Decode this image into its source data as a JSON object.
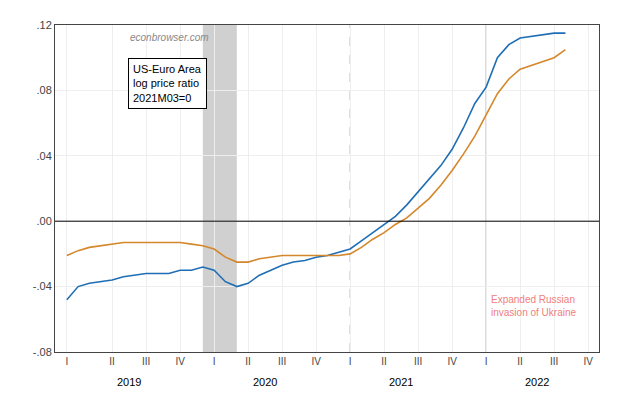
{
  "chart_data": {
    "type": "line",
    "annotations": [
      "econbrowser.com",
      "US-Euro Area\nlog price ratio\n2021M03=0"
    ],
    "x": [
      2018.917,
      2019.0,
      2019.083,
      2019.167,
      2019.25,
      2019.333,
      2019.417,
      2019.5,
      2019.583,
      2019.667,
      2019.75,
      2019.833,
      2019.917,
      2020.0,
      2020.083,
      2020.167,
      2020.25,
      2020.333,
      2020.417,
      2020.5,
      2020.583,
      2020.667,
      2020.75,
      2020.833,
      2020.917,
      2021.0,
      2021.083,
      2021.167,
      2021.25,
      2021.333,
      2021.417,
      2021.5,
      2021.583,
      2021.667,
      2021.75,
      2021.833,
      2021.917,
      2022.0,
      2022.083,
      2022.167,
      2022.25,
      2022.5,
      2022.583
    ],
    "series": [
      {
        "color": "#1f6eb5",
        "values": [
          -0.048,
          -0.04,
          -0.038,
          -0.037,
          -0.036,
          -0.034,
          -0.033,
          -0.032,
          -0.032,
          -0.032,
          -0.03,
          -0.03,
          -0.028,
          -0.03,
          -0.037,
          -0.04,
          -0.038,
          -0.033,
          -0.03,
          -0.027,
          -0.025,
          -0.024,
          -0.022,
          -0.021,
          -0.019,
          -0.017,
          -0.012,
          -0.007,
          -0.002,
          0.003,
          0.01,
          0.018,
          0.026,
          0.034,
          0.044,
          0.057,
          0.072,
          0.082,
          0.1,
          0.108,
          0.112,
          0.115,
          0.115
        ]
      },
      {
        "color": "#d4872b",
        "values": [
          -0.021,
          -0.018,
          -0.016,
          -0.015,
          -0.014,
          -0.013,
          -0.013,
          -0.013,
          -0.013,
          -0.013,
          -0.013,
          -0.014,
          -0.015,
          -0.017,
          -0.022,
          -0.025,
          -0.025,
          -0.023,
          -0.022,
          -0.021,
          -0.021,
          -0.021,
          -0.021,
          -0.021,
          -0.021,
          -0.02,
          -0.016,
          -0.011,
          -0.007,
          -0.002,
          0.002,
          0.008,
          0.014,
          0.022,
          0.031,
          0.041,
          0.052,
          0.065,
          0.078,
          0.087,
          0.093,
          0.1,
          0.105
        ]
      }
    ],
    "bands": [
      {
        "x0": 2019.917,
        "x1": 2020.167
      }
    ],
    "vlines": [
      {
        "x": 2021.0,
        "line_style": "dashed"
      },
      {
        "x": 2022.0,
        "color": "#f08080",
        "text": "Expanded Russian\ninvasion of Ukraine"
      }
    ],
    "hlines": [
      {
        "y": 0
      }
    ],
    "xlim": [
      2018.83,
      2022.83
    ],
    "xticks": [
      {
        "value": 2018.917,
        "label": "I"
      },
      {
        "value": 2019.25,
        "label": "II"
      },
      {
        "value": 2019.5,
        "label": "III"
      },
      {
        "value": 2019.75,
        "label": "IV"
      },
      {
        "value": 2020.0,
        "label": "I"
      },
      {
        "value": 2020.25,
        "label": "II"
      },
      {
        "value": 2020.5,
        "label": "III"
      },
      {
        "value": 2020.75,
        "label": "IV"
      },
      {
        "value": 2021.0,
        "label": "I"
      },
      {
        "value": 2021.25,
        "label": "II"
      },
      {
        "value": 2021.5,
        "label": "III"
      },
      {
        "value": 2021.75,
        "label": "IV"
      },
      {
        "value": 2022.0,
        "label": "I"
      },
      {
        "value": 2022.25,
        "label": "II"
      },
      {
        "value": 2022.5,
        "label": "III"
      },
      {
        "value": 2022.75,
        "label": "IV"
      }
    ],
    "year_labels": [
      {
        "value": 2019.375,
        "label": "2019"
      },
      {
        "value": 2020.375,
        "label": "2020"
      },
      {
        "value": 2021.375,
        "label": "2021"
      },
      {
        "value": 2022.375,
        "label": "2022"
      }
    ],
    "ylim": [
      -0.08,
      0.12
    ],
    "yticks": [
      {
        "value": -0.08,
        "label": "-.08"
      },
      {
        "value": -0.04,
        "label": "-.04"
      },
      {
        "value": 0.0,
        "label": ".00"
      },
      {
        "value": 0.04,
        "label": ".04"
      },
      {
        "value": 0.08,
        "label": ".08"
      },
      {
        "value": 0.12,
        "label": ".12"
      }
    ],
    "grid": true
  }
}
